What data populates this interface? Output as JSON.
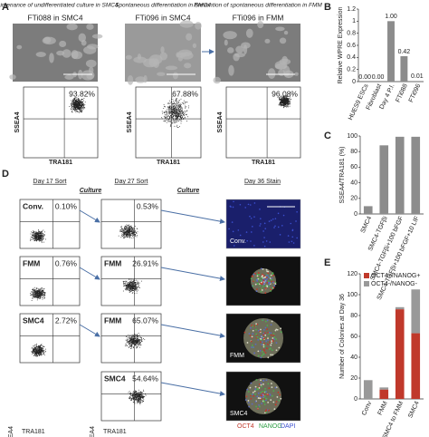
{
  "panel_letters": [
    "A",
    "B",
    "C",
    "D",
    "E"
  ],
  "panel_a": {
    "cells": [
      {
        "caption": "Maintenance of undifferentiated culture in SMC4",
        "line": "FTi088 in SMC4",
        "percent": "93.82%"
      },
      {
        "caption": "Spontaneous differentiation in SMC4",
        "line": "FTi096 in SMC4",
        "percent": "67.88%"
      },
      {
        "caption": "Prevention of spontaneous differentiation in FMM",
        "line": "FTi096 in FMM",
        "percent": "96.08%"
      }
    ],
    "y_axis": "SSEA4",
    "x_axis": "TRA181"
  },
  "panel_d": {
    "headers": [
      "Day 17 Sort",
      "Day 27 Sort",
      "Day 36 Stain"
    ],
    "culture": "Culture",
    "rows": [
      {
        "sort17": {
          "label": "Conv.",
          "percent": "0.10%"
        },
        "sort27": {
          "percent": "0.53%"
        },
        "stain": "Conv."
      },
      {
        "sort17": {
          "label": "FMM",
          "percent": "0.76%"
        },
        "sort27": {
          "label": "FMM",
          "percent": "26.91%"
        }
      },
      {
        "sort17": {
          "label": "SMC4",
          "percent": "2.72%"
        },
        "sort27": {
          "label": "FMM",
          "percent": "65.07%"
        },
        "stain": "FMM"
      },
      {
        "sort27": {
          "label": "SMC4",
          "percent": "54.64%"
        },
        "stain": "SMC4"
      }
    ],
    "y_axis": "SSEA4",
    "x_axis": "TRA181",
    "stain_legend": [
      "OCT4",
      "NANOG",
      "DAPI"
    ]
  },
  "chart_data": [
    {
      "type": "bar",
      "y_label": "Relative WPRE Expression",
      "categories": [
        "HUES9 ESCs",
        "Fibroblast",
        "Day 4 P.I.",
        "FTi088",
        "FTi096"
      ],
      "values": [
        0,
        0,
        1,
        0.42,
        0.01
      ],
      "value_labels": [
        "0.00",
        "0.00",
        "1.00",
        "0.42",
        "0.01"
      ],
      "color": "#8c8c8c",
      "ylim": [
        0,
        1.2
      ],
      "yticks": [
        0,
        0.2,
        0.4,
        0.6,
        0.8,
        1,
        1.2
      ]
    },
    {
      "type": "bar",
      "y_label": "SSEA4/TRA181 (%)",
      "categories": [
        "SMC4",
        "SMC4-TGFβi",
        "SMC4-TGFβi+100 bFGF",
        "SMC4-TGFβi+100 bFGF+10 LIF"
      ],
      "values": [
        10,
        88,
        99,
        99
      ],
      "color": "#8c8c8c",
      "ylim": [
        0,
        100
      ],
      "yticks": [
        0,
        20,
        40,
        60,
        80,
        100
      ]
    },
    {
      "type": "stacked_bar",
      "y_label": "Number of Colonies at Day 36",
      "categories": [
        "Conv",
        "FMM",
        "SMC4 to FMM",
        "SMC4"
      ],
      "series": [
        {
          "name": "OCT4+/NANOG+",
          "color": "#c0392b",
          "values": [
            0,
            9,
            86,
            63
          ]
        },
        {
          "name": "OCT4-/NANOG-",
          "color": "#999999",
          "values": [
            18,
            2,
            2,
            42
          ]
        }
      ],
      "ylim": [
        0,
        120
      ],
      "yticks": [
        0,
        20,
        40,
        60,
        80,
        100,
        120
      ],
      "legend": "top-left"
    }
  ]
}
